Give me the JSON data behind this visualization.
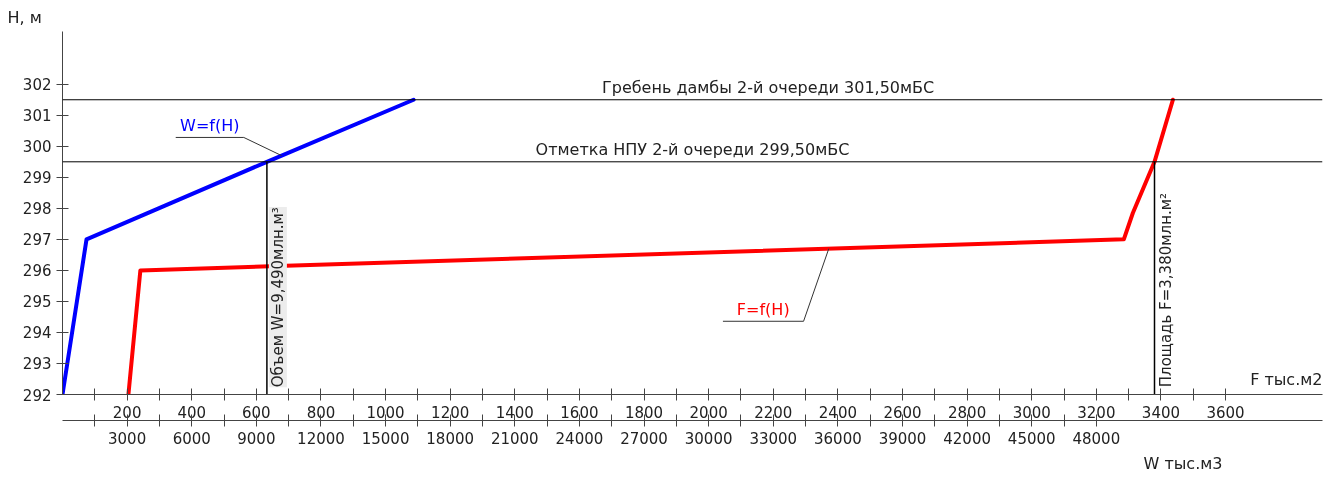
{
  "chart_data": {
    "type": "line",
    "ylabel": "H, м",
    "xlabel": "F тыс.м2",
    "x2label": "W тыс.м3",
    "xlim": [
      0,
      3900
    ],
    "xticks": [
      {
        "value": 100,
        "label": null
      },
      200,
      {
        "value": 300,
        "label": null
      },
      400,
      {
        "value": 500,
        "label": null
      },
      600,
      {
        "value": 700,
        "label": null
      },
      800,
      {
        "value": 900,
        "label": null
      },
      1000,
      {
        "value": 1100,
        "label": null
      },
      1200,
      {
        "value": 1300,
        "label": null
      },
      1400,
      {
        "value": 1500,
        "label": null
      },
      1600,
      {
        "value": 1700,
        "label": null
      },
      1800,
      {
        "value": 1900,
        "label": null
      },
      2000,
      {
        "value": 2100,
        "label": null
      },
      2200,
      {
        "value": 2300,
        "label": null
      },
      2400,
      {
        "value": 2500,
        "label": null
      },
      2600,
      {
        "value": 2700,
        "label": null
      },
      2800,
      {
        "value": 2900,
        "label": null
      },
      3000,
      {
        "value": 3100,
        "label": null
      },
      3200,
      {
        "value": 3300,
        "label": null
      },
      3400,
      {
        "value": 3500,
        "label": null
      },
      3600
    ],
    "x2lim": [
      0,
      58500
    ],
    "x2ticks": [
      {
        "value": 1500,
        "label": null
      },
      3000,
      {
        "value": 4500,
        "label": null
      },
      6000,
      {
        "value": 7500,
        "label": null
      },
      9000,
      {
        "value": 10500,
        "label": null
      },
      12000,
      {
        "value": 13500,
        "label": null
      },
      15000,
      {
        "value": 16500,
        "label": null
      },
      18000,
      {
        "value": 19500,
        "label": null
      },
      21000,
      {
        "value": 22500,
        "label": null
      },
      24000,
      {
        "value": 25500,
        "label": null
      },
      27000,
      {
        "value": 28500,
        "label": null
      },
      30000,
      {
        "value": 31500,
        "label": null
      },
      33000,
      {
        "value": 34500,
        "label": null
      },
      36000,
      {
        "value": 37500,
        "label": null
      },
      39000,
      {
        "value": 40500,
        "label": null
      },
      42000,
      {
        "value": 43500,
        "label": null
      },
      45000,
      {
        "value": 46500,
        "label": null
      },
      48000
    ],
    "ylim": [
      292,
      303.7
    ],
    "yticks": [
      292,
      293,
      294,
      295,
      296,
      297,
      298,
      299,
      300,
      301,
      302
    ],
    "grid": false,
    "legend": false,
    "marker": "none",
    "line_style": "solid",
    "series": [
      {
        "name": "W=f(H)",
        "color": "#0000ff",
        "axis": "x2",
        "x": [
          0,
          1115,
          9490,
          16300
        ],
        "values": [
          292,
          297,
          299.5,
          301.5
        ]
      },
      {
        "name": "F=f(H)",
        "color": "#ff0000",
        "x": [
          204,
          241,
          3285,
          3313,
          3380,
          3437
        ],
        "values": [
          292,
          296,
          297,
          297.85,
          299.5,
          301.5
        ]
      }
    ],
    "ref_lines": [
      {
        "axis": "y",
        "value": 301.5,
        "label": "Гребень дамбы 2-й очереди 301,50мБС",
        "color": "#000000"
      },
      {
        "axis": "y",
        "value": 299.5,
        "label": "Отметка НПУ 2-й очереди 299,50мБС",
        "color": "#000000"
      },
      {
        "axis": "x2",
        "value": 9490,
        "label": "Объем W=9,490млн.м³",
        "color": "#000000"
      },
      {
        "axis": "x",
        "value": 3380,
        "label": "Площадь F=3,380млн.м²",
        "color": "#000000"
      }
    ]
  }
}
